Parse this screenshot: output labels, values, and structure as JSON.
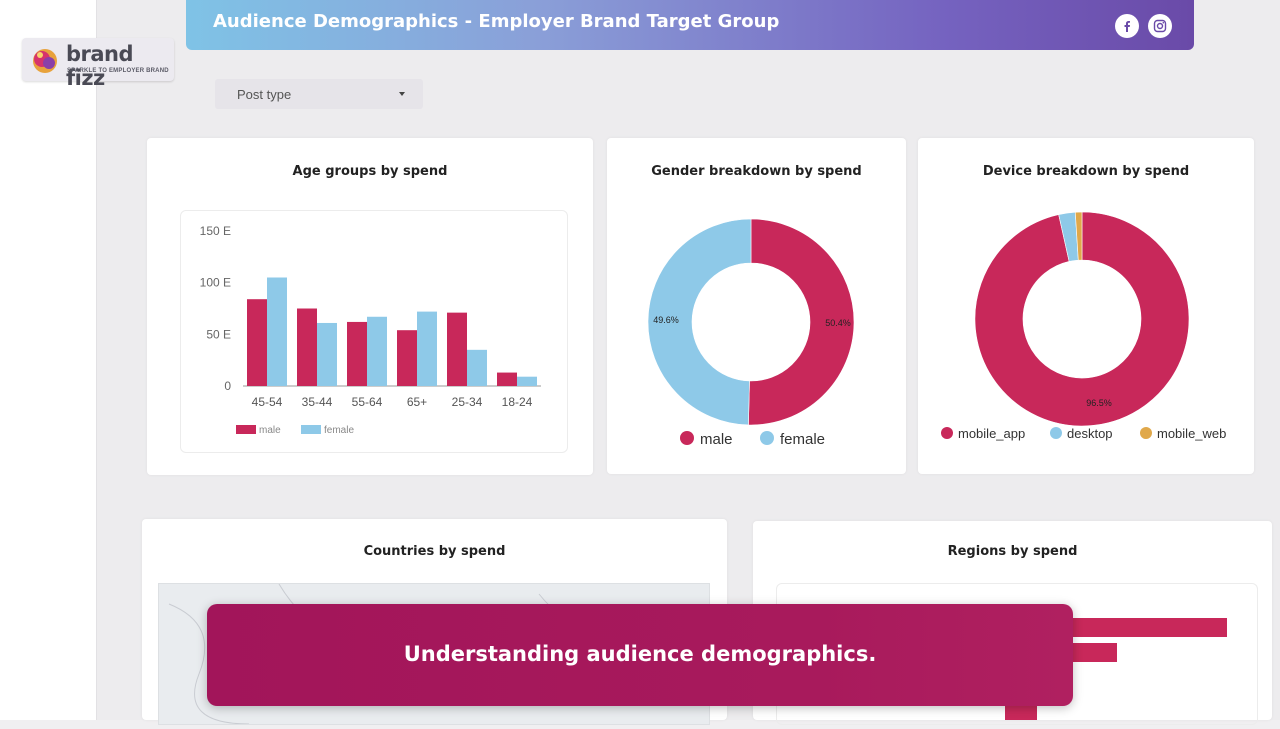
{
  "logo": {
    "name": "brand fizz",
    "tagline": "SPARKLE TO EMPLOYER BRAND"
  },
  "header": {
    "title": "Audience Demographics - Employer Brand Target Group",
    "icons": [
      "facebook-icon",
      "instagram-icon"
    ]
  },
  "filter": {
    "label": "Post type"
  },
  "colors": {
    "male": "#c8285a",
    "female": "#8ec9e8",
    "mobile_app": "#c8285a",
    "desktop": "#8ec9e8",
    "mobile_web": "#e0a84a"
  },
  "cards": {
    "age": {
      "title": "Age groups by spend"
    },
    "gender": {
      "title": "Gender breakdown by spend"
    },
    "device": {
      "title": "Device breakdown by spend"
    },
    "countries": {
      "title": "Countries by spend"
    },
    "regions": {
      "title": "Regions by spend"
    }
  },
  "chart_data": [
    {
      "type": "bar",
      "title": "Age groups by spend",
      "categories": [
        "45-54",
        "35-44",
        "55-64",
        "65+",
        "25-34",
        "18-24"
      ],
      "series": [
        {
          "name": "male",
          "values": [
            84,
            75,
            62,
            54,
            71,
            13
          ]
        },
        {
          "name": "female",
          "values": [
            105,
            61,
            67,
            72,
            35,
            9
          ]
        }
      ],
      "yticks": [
        "0",
        "50 E",
        "100 E",
        "150 E"
      ],
      "ylim": [
        0,
        150
      ],
      "legend": [
        "male",
        "female"
      ]
    },
    {
      "type": "pie",
      "title": "Gender breakdown by spend",
      "labels": [
        "male",
        "female"
      ],
      "values": [
        50.4,
        49.6
      ],
      "value_labels": [
        "50.4%",
        "49.6%"
      ],
      "legend": [
        "male",
        "female"
      ]
    },
    {
      "type": "pie",
      "title": "Device breakdown by spend",
      "labels": [
        "mobile_app",
        "desktop",
        "mobile_web"
      ],
      "values": [
        96.5,
        2.5,
        1.0
      ],
      "value_labels": [
        "96.5%"
      ],
      "legend": [
        "mobile_app",
        "desktop",
        "mobile_web"
      ]
    },
    {
      "type": "bar",
      "title": "Regions by spend",
      "categories": [],
      "values": []
    }
  ],
  "caption": {
    "text": "Understanding audience demographics."
  }
}
